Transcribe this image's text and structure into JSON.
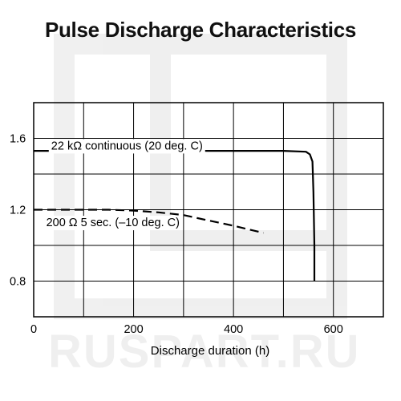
{
  "chart_data": {
    "type": "line",
    "title": "Pulse Discharge Characteristics",
    "xlabel": "Discharge duration (h)",
    "ylabel": "",
    "xlim": [
      0,
      700
    ],
    "ylim": [
      0.6,
      1.8
    ],
    "x_ticks": [
      0,
      200,
      400,
      600
    ],
    "y_ticks": [
      0.8,
      1.2,
      1.6
    ],
    "x_tick_labels": [
      "0",
      "200",
      "400",
      "600"
    ],
    "y_tick_labels": [
      "0.8",
      "1.2",
      "1.6"
    ],
    "grid": true,
    "series": [
      {
        "name": "22 kΩ continuous (20 deg. C)",
        "style": "solid",
        "color": "#000000",
        "x": [
          0,
          100,
          200,
          300,
          400,
          500,
          545,
          553,
          558,
          560,
          562,
          562
        ],
        "y": [
          1.53,
          1.53,
          1.53,
          1.53,
          1.53,
          1.53,
          1.525,
          1.51,
          1.47,
          1.3,
          1.0,
          0.8
        ]
      },
      {
        "name": "200 Ω 5 sec. (–10 deg. C)",
        "style": "dashed",
        "color": "#000000",
        "x": [
          0,
          50,
          100,
          150,
          200,
          250,
          300,
          350,
          400,
          460
        ],
        "y": [
          1.2,
          1.2,
          1.2,
          1.2,
          1.195,
          1.185,
          1.17,
          1.14,
          1.11,
          1.07
        ]
      }
    ]
  },
  "watermark": "RUSPART.RU"
}
